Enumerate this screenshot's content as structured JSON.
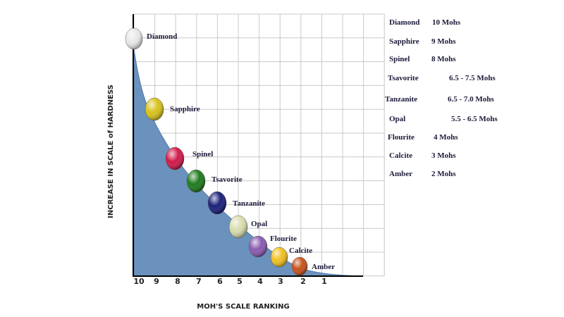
{
  "axes": {
    "y_title": "INCREASE IN SCALE of HARDNESS",
    "x_title": "MOH'S SCALE RANKING",
    "x_ticks": [
      "10",
      "9",
      "8",
      "7",
      "6",
      "5",
      "4",
      "3",
      "2",
      "1"
    ]
  },
  "gems": [
    {
      "label": "Diamond"
    },
    {
      "label": "Sapphire"
    },
    {
      "label": "Spinel"
    },
    {
      "label": "Tsavorite"
    },
    {
      "label": "Tanzanite"
    },
    {
      "label": "Opal"
    },
    {
      "label": "Flourite"
    },
    {
      "label": "Calcite"
    },
    {
      "label": "Amber"
    }
  ],
  "table": {
    "rows": [
      [
        "Diamond",
        "10 Mohs"
      ],
      [
        "Sapphire",
        "9 Mohs"
      ],
      [
        "Spinel",
        "8 Mohs"
      ],
      [
        "Tsavorite",
        "6.5 - 7.5 Mohs"
      ],
      [
        "Tanzanite",
        "6.5 - 7.0 Mohs"
      ],
      [
        "Opal",
        "5.5 - 6.5 Mohs"
      ],
      [
        "Flourite",
        "4 Mohs"
      ],
      [
        "Calcite",
        "3 Mohs"
      ],
      [
        "Amber",
        "2 Mohs"
      ]
    ]
  }
}
